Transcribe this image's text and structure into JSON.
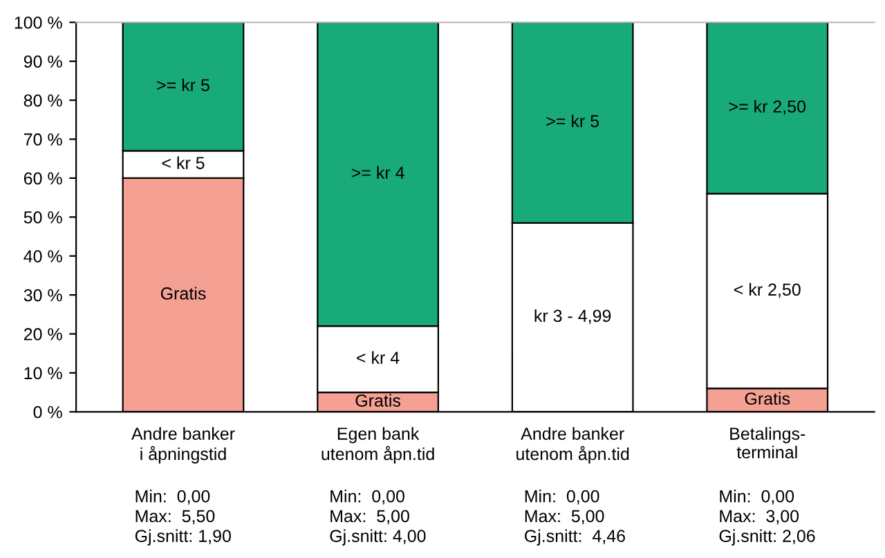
{
  "chart_data": {
    "type": "bar",
    "stacked": true,
    "categories": [
      "Andre banker\ni åpningstid",
      "Egen bank\nutenom åpn.tid",
      "Andre banker\nutenom åpn.tid",
      "Betalings-\nterminal"
    ],
    "series": [
      {
        "color": "#f4a093",
        "values": [
          60,
          5,
          0,
          6
        ],
        "value_labels": [
          "Gratis",
          "Gratis",
          null,
          "Gratis"
        ]
      },
      {
        "color": "#ffffff",
        "values": [
          7,
          17,
          48.5,
          50
        ],
        "value_labels": [
          "< kr 5",
          "< kr 4",
          "kr 3 - 4,99",
          "< kr 2,50"
        ]
      },
      {
        "color": "#19aa7a",
        "values": [
          33,
          78,
          51.5,
          44
        ],
        "value_labels": [
          ">= kr 5",
          ">= kr 4",
          ">= kr 5",
          ">= kr 2,50"
        ]
      }
    ],
    "ylim": [
      0,
      100
    ],
    "yticks": [
      {
        "value": 0,
        "label": "0 %"
      },
      {
        "value": 10,
        "label": "10 %"
      },
      {
        "value": 20,
        "label": "20 %"
      },
      {
        "value": 30,
        "label": "30 %"
      },
      {
        "value": 40,
        "label": "40 %"
      },
      {
        "value": 50,
        "label": "50 %"
      },
      {
        "value": 60,
        "label": "60 %"
      },
      {
        "value": 70,
        "label": "70 %"
      },
      {
        "value": 80,
        "label": "80 %"
      },
      {
        "value": 90,
        "label": "90 %"
      },
      {
        "value": 100,
        "label": "100 %"
      }
    ],
    "annotations": [
      "Min:  0,00\nMax:  5,50\nGj.snitt: 1,90",
      "Min:  0,00\nMax:  5,00\nGj.snitt: 4,00",
      "Min:  0,00\nMax:  5,00\nGj.snitt:  4,46",
      "Min:  0,00\nMax:  3,00\nGj.snitt: 2,06"
    ]
  }
}
